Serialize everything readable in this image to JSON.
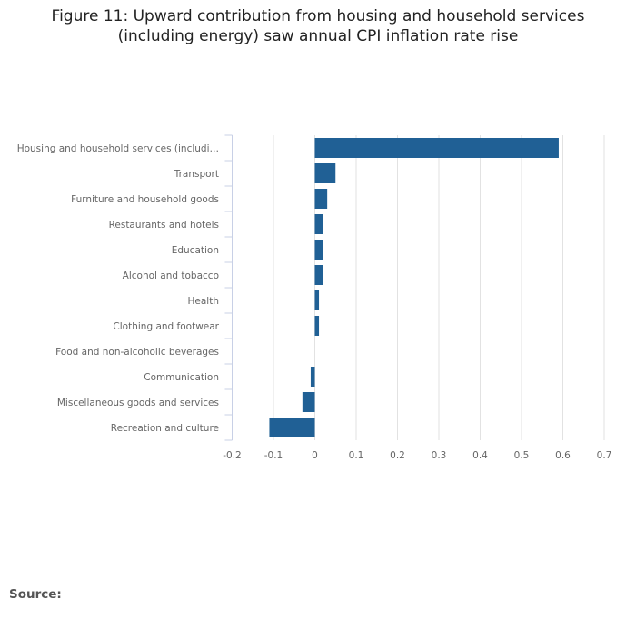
{
  "chart_data": {
    "type": "bar",
    "orientation": "horizontal",
    "title_line1": "Figure 11: Upward contribution from housing and household services",
    "title_line2": "(including energy) saw annual CPI inflation rate rise",
    "categories": [
      "Housing and household services (includi…",
      "Transport",
      "Furniture and household goods",
      "Restaurants and hotels",
      "Education",
      "Alcohol and tobacco",
      "Health",
      "Clothing and footwear",
      "Food and non-alcoholic beverages",
      "Communication",
      "Miscellaneous goods and services",
      "Recreation and culture"
    ],
    "values": [
      0.59,
      0.05,
      0.03,
      0.02,
      0.02,
      0.02,
      0.01,
      0.01,
      0.0,
      -0.01,
      -0.03,
      -0.11
    ],
    "xlim": [
      -0.2,
      0.7
    ],
    "xticks": [
      "-0.2",
      "-0.1",
      "0",
      "0.1",
      "0.2",
      "0.3",
      "0.4",
      "0.5",
      "0.6",
      "0.7"
    ],
    "xlabel": "",
    "ylabel": "",
    "grid": true,
    "bar_color": "#206095"
  },
  "source_label": "Source:"
}
